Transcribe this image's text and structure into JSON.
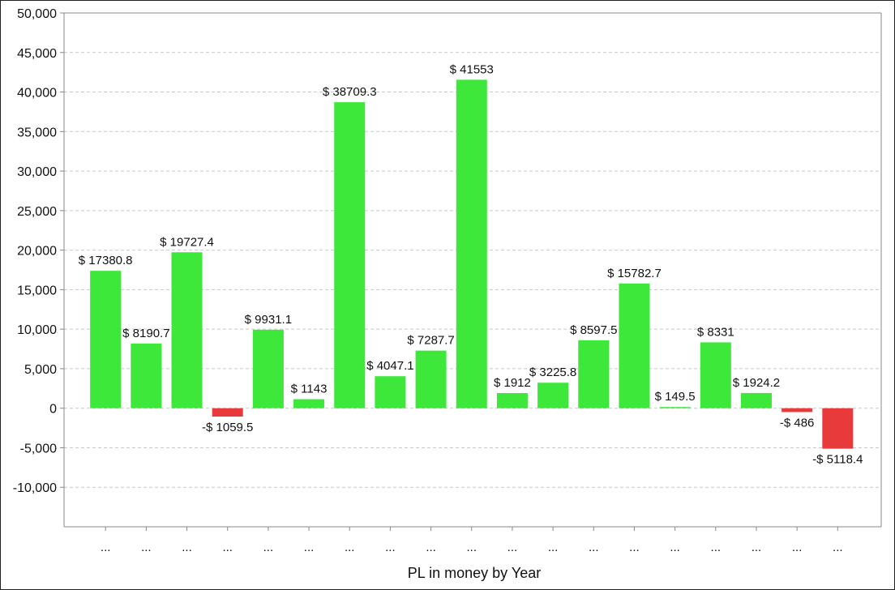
{
  "chart_data": {
    "type": "bar",
    "title": "",
    "xlabel": "PL in money by Year",
    "ylabel": "",
    "ylim": [
      -15000,
      50000
    ],
    "y_ticks": [
      50000,
      45000,
      40000,
      35000,
      30000,
      25000,
      20000,
      15000,
      10000,
      5000,
      0,
      -5000,
      -10000
    ],
    "y_tick_labels": [
      "50,000",
      "45,000",
      "40,000",
      "35,000",
      "30,000",
      "25,000",
      "20,000",
      "15,000",
      "10,000",
      "5,000",
      "0",
      "-5,000",
      "-10,000"
    ],
    "grid": true,
    "categories": [
      "...",
      "...",
      "...",
      "...",
      "...",
      "...",
      "...",
      "...",
      "...",
      "...",
      "...",
      "...",
      "...",
      "...",
      "...",
      "...",
      "...",
      "...",
      "..."
    ],
    "values": [
      17380.8,
      8190.7,
      19727.4,
      -1059.5,
      9931.1,
      1143,
      38709.3,
      4047.1,
      7287.7,
      41553,
      1912,
      3225.8,
      8597.5,
      15782.7,
      149.5,
      8331,
      1924.2,
      -486,
      -5118.4
    ],
    "data_labels": [
      "$ 17380.8",
      "$ 8190.7",
      "$ 19727.4",
      "-$ 1059.5",
      "$ 9931.1",
      "$ 1143",
      "$ 38709.3",
      "$ 4047.1",
      "$ 7287.7",
      "$ 41553",
      "$ 1912",
      "$ 3225.8",
      "$ 8597.5",
      "$ 15782.7",
      "$ 149.5",
      "$ 8331",
      "$ 1924.2",
      "-$ 486",
      "-$ 5118.4"
    ],
    "colors": {
      "positive": "#3de83a",
      "negative": "#e83a3a",
      "grid": "#c8c8c8",
      "axis": "#888888"
    }
  }
}
